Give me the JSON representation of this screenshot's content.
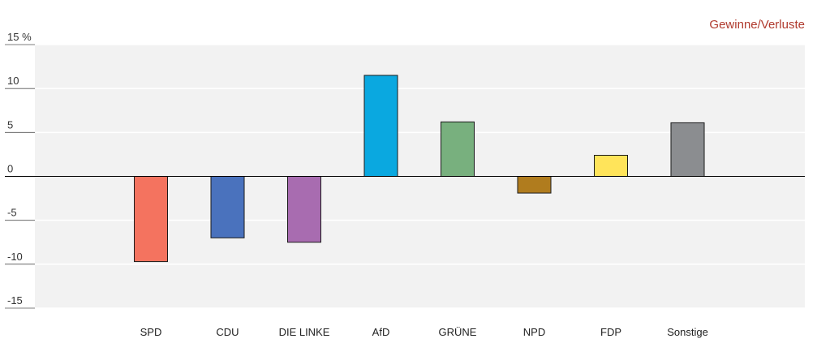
{
  "chart_data": {
    "type": "bar",
    "title": "Gewinne/Verluste",
    "categories": [
      "SPD",
      "CDU",
      "DIE LINKE",
      "AfD",
      "GRÜNE",
      "NPD",
      "FDP",
      "Sonstige"
    ],
    "values": [
      -9.7,
      -7.0,
      -7.5,
      11.5,
      6.2,
      -1.9,
      2.4,
      6.1
    ],
    "colors": [
      "#f4735f",
      "#4a72bd",
      "#a86cb0",
      "#0aa8e0",
      "#78b07e",
      "#b07c1e",
      "#ffe45a",
      "#8b8d90"
    ],
    "ylim": [
      -15,
      15
    ],
    "yticks": [
      15,
      10,
      5,
      0,
      -5,
      -10,
      -15
    ],
    "ytick_labels": [
      "15 %",
      "10",
      "5",
      "0",
      "-5",
      "-10",
      "-15"
    ],
    "grid": true,
    "xlabel": "",
    "ylabel": ""
  }
}
